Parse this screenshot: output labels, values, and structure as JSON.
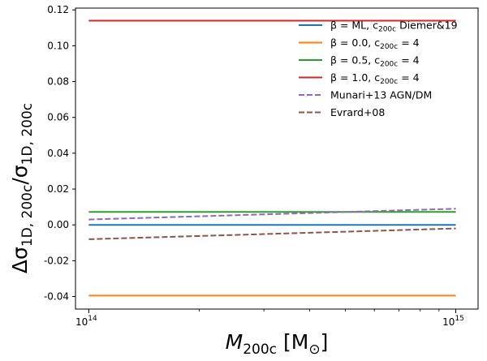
{
  "chart_data": {
    "type": "line",
    "title": "",
    "xlabel": {
      "main": "M",
      "sub": "200c",
      "unit_open": " [M",
      "unit_sub": "⊙",
      "unit_close": "]"
    },
    "ylabel": {
      "delta": "Δσ",
      "num_sub": "1D, 200c",
      "slash": "/σ",
      "den_sub": "1D, 200c"
    },
    "xscale": "log",
    "xlim": [
      92000000000000.0,
      1150000000000000.0
    ],
    "ylim": [
      -0.047,
      0.121
    ],
    "xticks": [
      {
        "value": 100000000000000.0,
        "base": "10",
        "exp": "14"
      },
      {
        "value": 1000000000000000.0,
        "base": "10",
        "exp": "15"
      }
    ],
    "yticks": [
      {
        "value": 0.12,
        "label": "0.12"
      },
      {
        "value": 0.1,
        "label": "0.10"
      },
      {
        "value": 0.08,
        "label": "0.08"
      },
      {
        "value": 0.06,
        "label": "0.06"
      },
      {
        "value": 0.04,
        "label": "0.04"
      },
      {
        "value": 0.02,
        "label": "0.02"
      },
      {
        "value": 0.0,
        "label": "0.00"
      },
      {
        "value": -0.02,
        "label": "-0.02"
      },
      {
        "value": -0.04,
        "label": "-0.04"
      }
    ],
    "legend_position": "top-right",
    "series": [
      {
        "name": "β = ML, c200c Diemer&19",
        "label_main": "β = ML, c",
        "label_sub": "200c",
        "label_tail": " Diemer&19",
        "color": "#1f77b4",
        "dash": "solid",
        "x": [
          100000000000000.0,
          1000000000000000.0
        ],
        "y": [
          0.0,
          0.0
        ]
      },
      {
        "name": "β = 0.0, c200c = 4",
        "label_main": "β = 0.0, c",
        "label_sub": "200c",
        "label_tail": " = 4",
        "color": "#ff7f0e",
        "dash": "solid",
        "x": [
          100000000000000.0,
          1000000000000000.0
        ],
        "y": [
          -0.0395,
          -0.0395
        ]
      },
      {
        "name": "β = 0.5, c200c = 4",
        "label_main": "β = 0.5, c",
        "label_sub": "200c",
        "label_tail": " = 4",
        "color": "#2ca02c",
        "dash": "solid",
        "x": [
          100000000000000.0,
          1000000000000000.0
        ],
        "y": [
          0.0072,
          0.0072
        ]
      },
      {
        "name": "β = 1.0, c200c = 4",
        "label_main": "β = 1.0, c",
        "label_sub": "200c",
        "label_tail": " = 4",
        "color": "#d62728",
        "dash": "solid",
        "x": [
          100000000000000.0,
          1000000000000000.0
        ],
        "y": [
          0.114,
          0.114
        ]
      },
      {
        "name": "Munari+13 AGN/DM",
        "label_main": "Munari+13 AGN/DM",
        "label_sub": "",
        "label_tail": "",
        "color": "#9467bd",
        "dash": "dashed",
        "x": [
          100000000000000.0,
          1000000000000000.0
        ],
        "y": [
          0.003,
          0.009
        ]
      },
      {
        "name": "Evrard+08",
        "label_main": "Evrard+08",
        "label_sub": "",
        "label_tail": "",
        "color": "#8c564b",
        "dash": "dashed",
        "x": [
          100000000000000.0,
          1000000000000000.0
        ],
        "y": [
          -0.008,
          -0.002
        ]
      }
    ]
  }
}
